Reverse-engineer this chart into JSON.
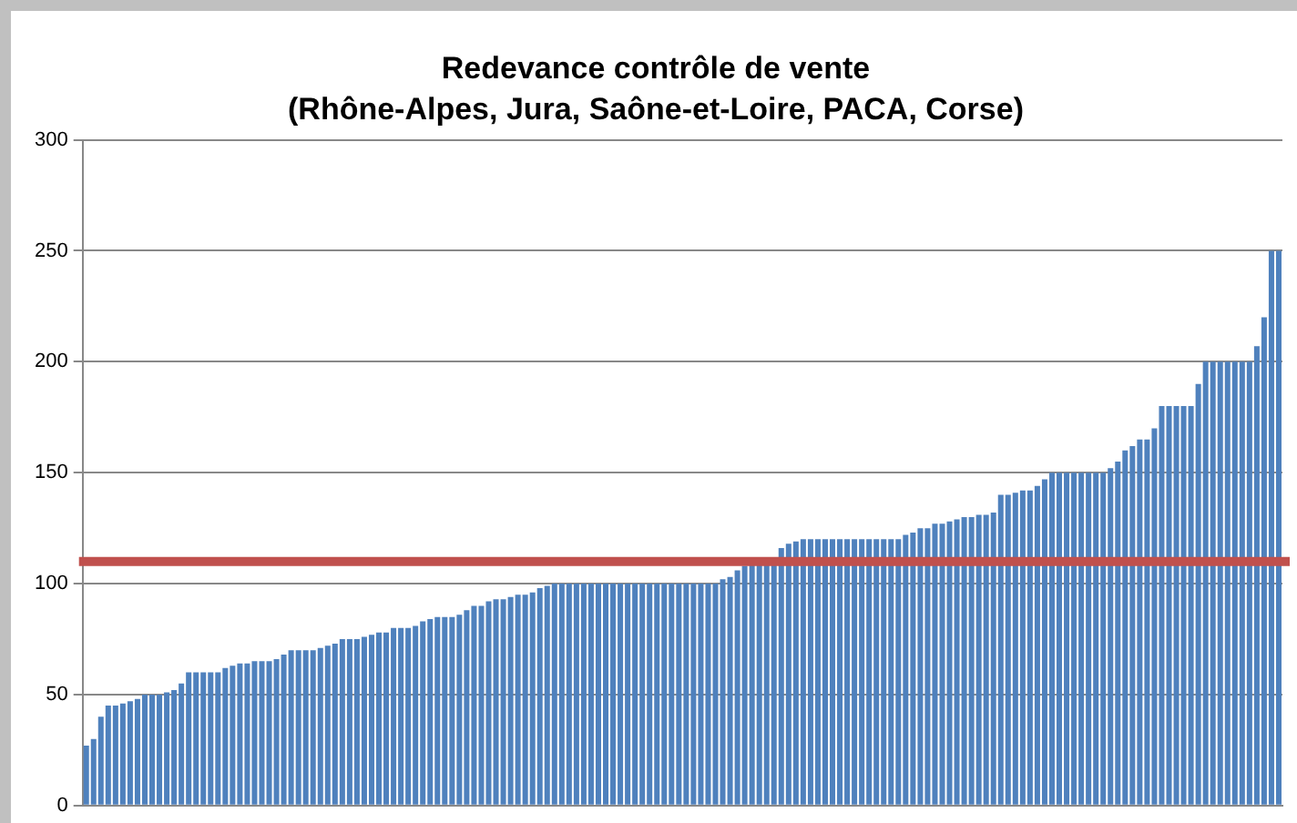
{
  "chart_data": {
    "type": "bar",
    "title": "Redevance contrôle de vente",
    "subtitle": "(Rhône-Alpes, Jura, Saône-et-Loire, PACA, Corse)",
    "categories": [
      null,
      null,
      null,
      null,
      null,
      null,
      null,
      null,
      null,
      null,
      null,
      null,
      null,
      null,
      null,
      null,
      null,
      null,
      null,
      null,
      null,
      null,
      null,
      null,
      null,
      null,
      null,
      null,
      null,
      null,
      null,
      null,
      null,
      null,
      null,
      null,
      null,
      null,
      null,
      null,
      null,
      null,
      null,
      null,
      null,
      null,
      null,
      null,
      null,
      null,
      null,
      null,
      null,
      null,
      null,
      null,
      null,
      null,
      null,
      null,
      null,
      null,
      null,
      null,
      null,
      null,
      null,
      null,
      null,
      null,
      null,
      null,
      null,
      null,
      null,
      null,
      null,
      null,
      null,
      null,
      null,
      null,
      null,
      null,
      null,
      null,
      null,
      null,
      null,
      null,
      null,
      null,
      null,
      null,
      null,
      null,
      null,
      null,
      null,
      null,
      null,
      null,
      null,
      null,
      null,
      null,
      null,
      null,
      null,
      null,
      null,
      null,
      null,
      null,
      null,
      null,
      null,
      null,
      null,
      null,
      null,
      null,
      null,
      null,
      null,
      null,
      null,
      null,
      null,
      null,
      null,
      null,
      null,
      null,
      null,
      null,
      null,
      null,
      null,
      null,
      null,
      null,
      null,
      null,
      null,
      null,
      null,
      null,
      null,
      null,
      null,
      null,
      null,
      null,
      null,
      null,
      null,
      null,
      null,
      null,
      null,
      null,
      null,
      null
    ],
    "values": [
      27,
      30,
      40,
      45,
      45,
      46,
      47,
      48,
      50,
      50,
      50,
      51,
      52,
      55,
      60,
      60,
      60,
      60,
      60,
      62,
      63,
      64,
      64,
      65,
      65,
      65,
      66,
      68,
      70,
      70,
      70,
      70,
      71,
      72,
      73,
      75,
      75,
      75,
      76,
      77,
      78,
      78,
      80,
      80,
      80,
      81,
      83,
      84,
      85,
      85,
      85,
      86,
      88,
      90,
      90,
      92,
      93,
      93,
      94,
      95,
      95,
      96,
      98,
      99,
      100,
      100,
      100,
      100,
      100,
      100,
      100,
      100,
      100,
      100,
      100,
      100,
      100,
      100,
      100,
      100,
      100,
      100,
      100,
      100,
      100,
      100,
      100,
      102,
      103,
      106,
      108,
      110,
      110,
      110,
      110,
      116,
      118,
      119,
      120,
      120,
      120,
      120,
      120,
      120,
      120,
      120,
      120,
      120,
      120,
      120,
      120,
      120,
      122,
      123,
      125,
      125,
      127,
      127,
      128,
      129,
      130,
      130,
      131,
      131,
      132,
      140,
      140,
      141,
      142,
      142,
      144,
      147,
      150,
      150,
      150,
      150,
      150,
      150,
      150,
      150,
      152,
      155,
      160,
      162,
      165,
      165,
      170,
      180,
      180,
      180,
      180,
      180,
      190,
      200,
      200,
      200,
      200,
      200,
      200,
      200,
      207,
      220,
      250,
      250
    ],
    "color": "#4f81bd",
    "ylim": [
      0,
      300
    ],
    "yticks": [
      0,
      50,
      100,
      150,
      200,
      250,
      300
    ],
    "grid": "y",
    "tick_labels": "y",
    "ref_lines": [
      {
        "axis": "y",
        "value": 110,
        "color": "#c0504d"
      }
    ]
  }
}
